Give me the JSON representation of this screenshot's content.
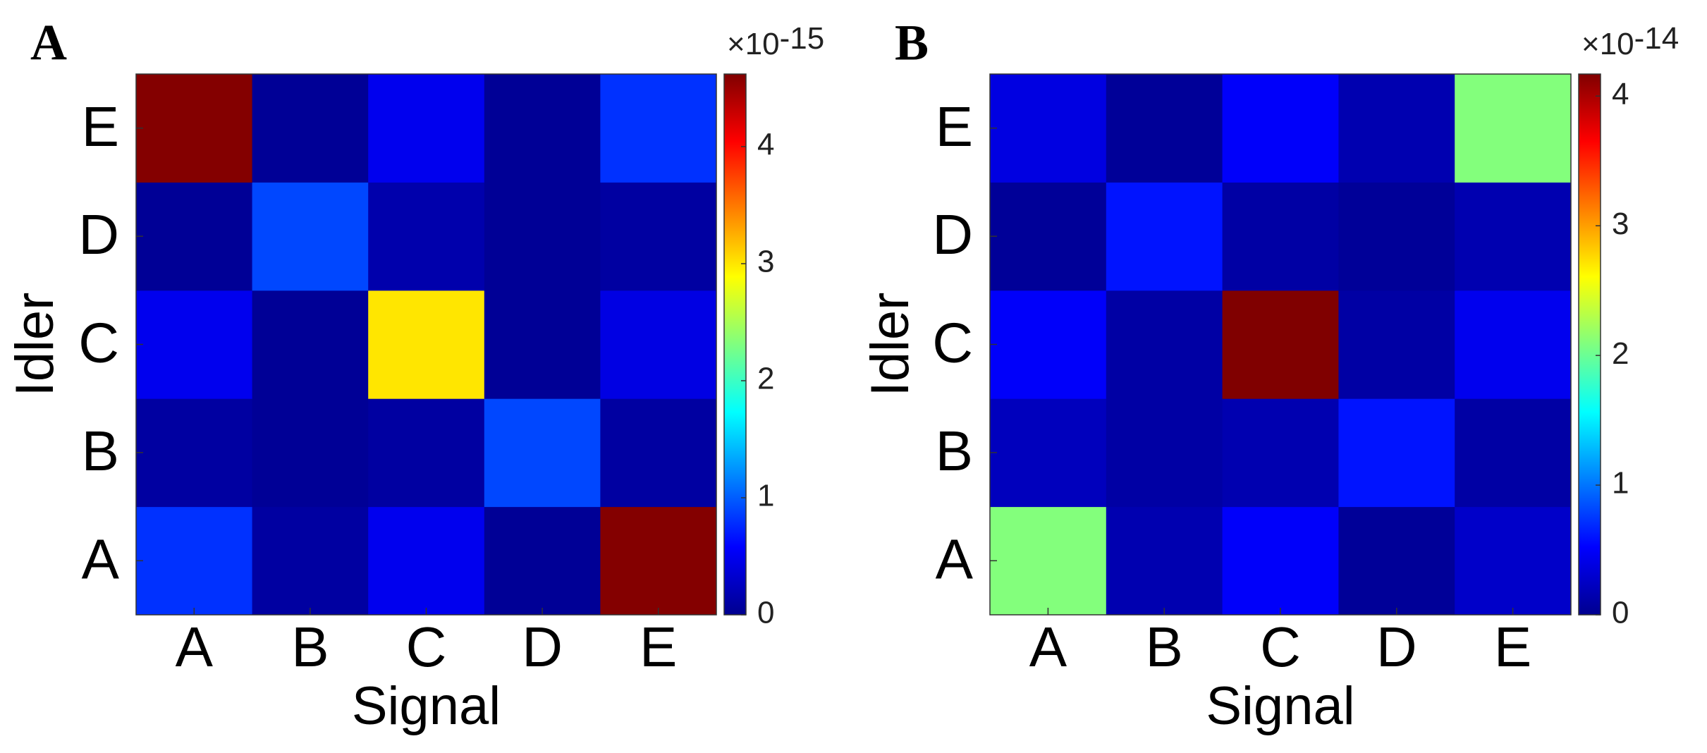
{
  "chart_data": [
    {
      "type": "heatmap",
      "panel_label": "A",
      "x_label": "Signal",
      "y_label": "Idler",
      "x_categories": [
        "A",
        "B",
        "C",
        "D",
        "E"
      ],
      "y_categories": [
        "A",
        "B",
        "C",
        "D",
        "E"
      ],
      "z": [
        [
          0.8,
          0.15,
          0.5,
          0.1,
          4.6
        ],
        [
          0.15,
          0.1,
          0.15,
          0.9,
          0.15
        ],
        [
          0.5,
          0.1,
          3.0,
          0.1,
          0.45
        ],
        [
          0.1,
          0.9,
          0.2,
          0.1,
          0.15
        ],
        [
          4.6,
          0.1,
          0.5,
          0.1,
          0.8
        ]
      ],
      "colormap": "jet",
      "zlim": [
        0,
        4.62
      ],
      "zticks": [
        0,
        1,
        2,
        3,
        4
      ],
      "colorbar_multiplier": "×10",
      "colorbar_exponent": "-15"
    },
    {
      "type": "heatmap",
      "panel_label": "B",
      "x_label": "Signal",
      "y_label": "Idler",
      "x_categories": [
        "A",
        "B",
        "C",
        "D",
        "E"
      ],
      "y_categories": [
        "A",
        "B",
        "C",
        "D",
        "E"
      ],
      "z": [
        [
          2.1,
          0.2,
          0.5,
          0.1,
          0.3
        ],
        [
          0.25,
          0.15,
          0.2,
          0.6,
          0.15
        ],
        [
          0.5,
          0.15,
          4.2,
          0.15,
          0.45
        ],
        [
          0.1,
          0.6,
          0.15,
          0.1,
          0.2
        ],
        [
          0.4,
          0.1,
          0.5,
          0.2,
          2.1
        ]
      ],
      "colormap": "jet",
      "zlim": [
        0,
        4.17
      ],
      "zticks": [
        0,
        1,
        2,
        3,
        4
      ],
      "colorbar_multiplier": "×10",
      "colorbar_exponent": "-14"
    }
  ]
}
